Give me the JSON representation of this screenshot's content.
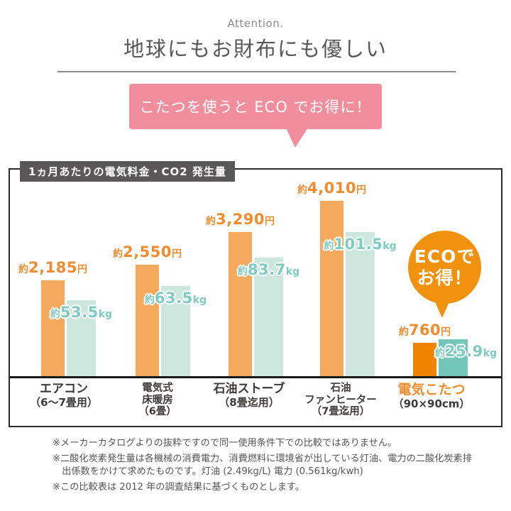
{
  "header": {
    "attention": "Attention.",
    "title": "地球にもお財布にも優しい"
  },
  "bubble": {
    "text": "こたつを使うと ECO でお得に！"
  },
  "chart": {
    "title": "1ヵ月あたりの電気料金・CO2 発生量"
  },
  "eco_badge": {
    "line1": "ECOで",
    "line2": "お得！"
  },
  "chart_data": {
    "type": "bar",
    "title": "1ヵ月あたりの電気料金・CO2 発生量",
    "subtitle": "こたつを使うと ECO でお得に！",
    "categories": [
      "エアコン（6〜7畳用）",
      "電気式床暖房（6畳）",
      "石油ストーブ（8畳迄用）",
      "石油ファンヒーター（7畳迄用）",
      "電気こたつ（90×90cm）"
    ],
    "category_lines": [
      [
        "エアコン",
        "（6〜7畳用）"
      ],
      [
        "電気式",
        "床暖房",
        "（6畳）"
      ],
      [
        "石油ストーブ",
        "（8畳迄用）"
      ],
      [
        "石油",
        "ファンヒーター",
        "（7畳迄用）"
      ],
      [
        "電気こたつ",
        "（90×90cm）"
      ]
    ],
    "series": [
      {
        "name": "電気料金（1ヵ月あたり）",
        "unit": "円",
        "values": [
          2185,
          2550,
          3290,
          4010,
          760
        ],
        "labels": [
          "約2,185円",
          "約2,550円",
          "約3,290円",
          "約4,010円",
          "約760円"
        ]
      },
      {
        "name": "CO2発生量（1ヵ月あたり）",
        "unit": "kg",
        "values": [
          53.5,
          63.5,
          83.7,
          101.5,
          25.9
        ],
        "labels": [
          "約53.5kg",
          "約63.5kg",
          "約83.7kg",
          "約101.5kg",
          "約25.9kg"
        ]
      }
    ],
    "highlight_index": 4,
    "legend": "none",
    "axis": {
      "visible": false,
      "baseline": true
    }
  },
  "footnotes": [
    "※メーカーカタログよりの抜粋ですので同一使用条件下での比較ではありません。",
    "※二酸化炭素発生量は各機械の消費電力、消費燃料に環境省が出している灯油、電力の二酸化炭素排出係数をかけて求めたものです。灯油 (2.49kg/L) 電力 (0.561kg/kwh)",
    "※この比較表は 2012 年の調査結果に基づくものとします。"
  ],
  "colors": {
    "cost_bar": "#F4A95C",
    "cost_bar_highlight": "#F08300",
    "co2_bar": "#CDE7DE",
    "co2_bar_highlight": "#74C6BB",
    "cost_label_text": "#EF8C30",
    "co2_label_text": "#7FCBC1",
    "bubble_pink": "#F08E9D",
    "eco_badge_orange": "#F0920D",
    "chart_badge_gray": "#595757",
    "highlight_category_text": "#EF8C30"
  }
}
